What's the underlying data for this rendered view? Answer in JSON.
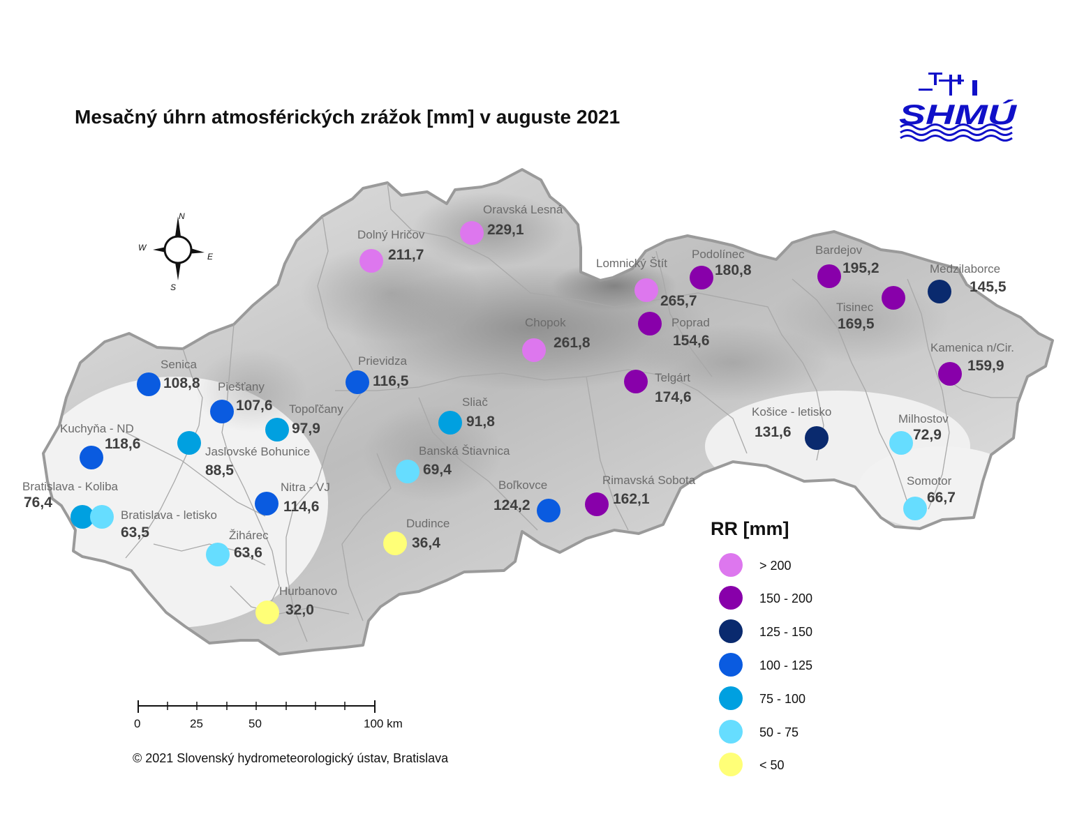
{
  "title": "Mesačný úhrn atmosférických zrážok [mm] v auguste 2021",
  "logo": {
    "text": "SHMÚ",
    "color": "#1010c8"
  },
  "copyright": "© 2021 Slovenský hydrometeorologický ústav, Bratislava",
  "compass": {
    "n": "N",
    "s": "S",
    "e": "E",
    "w": "W"
  },
  "scale": {
    "labels": [
      "0",
      "25",
      "50",
      "100 km"
    ]
  },
  "legend": {
    "title": "RR [mm]",
    "items": [
      {
        "label": "> 200",
        "color": "#dd77ee"
      },
      {
        "label": "150 - 200",
        "color": "#8800aa"
      },
      {
        "label": "125 - 150",
        "color": "#0a2a6e"
      },
      {
        "label": "100 - 125",
        "color": "#0a5be0"
      },
      {
        "label": "75 - 100",
        "color": "#00a0e0"
      },
      {
        "label": "50 - 75",
        "color": "#66ddff"
      },
      {
        "label": "< 50",
        "color": "#ffff77"
      }
    ]
  },
  "stations": [
    {
      "name": "Oravská Lesná",
      "value": "229,1",
      "class": 0
    },
    {
      "name": "Dolný Hričov",
      "value": "211,7",
      "class": 0
    },
    {
      "name": "Lomnický Štít",
      "value": "265,7",
      "class": 0
    },
    {
      "name": "Podolínec",
      "value": "180,8",
      "class": 1
    },
    {
      "name": "Bardejov",
      "value": "195,2",
      "class": 1
    },
    {
      "name": "Medzilaborce",
      "value": "145,5",
      "class": 2
    },
    {
      "name": "Tisinec",
      "value": "169,5",
      "class": 1
    },
    {
      "name": "Poprad",
      "value": "154,6",
      "class": 1
    },
    {
      "name": "Chopok",
      "value": "261,8",
      "class": 0
    },
    {
      "name": "Kamenica n/Cir.",
      "value": "159,9",
      "class": 1
    },
    {
      "name": "Telgárt",
      "value": "174,6",
      "class": 1
    },
    {
      "name": "Senica",
      "value": "108,8",
      "class": 3
    },
    {
      "name": "Prievidza",
      "value": "116,5",
      "class": 3
    },
    {
      "name": "Piešťany",
      "value": "107,6",
      "class": 3
    },
    {
      "name": "Topoľčany",
      "value": "97,9",
      "class": 4
    },
    {
      "name": "Sliač",
      "value": "91,8",
      "class": 4
    },
    {
      "name": "Kuchyňa - ND",
      "value": "118,6",
      "class": 3
    },
    {
      "name": "Jaslovské Bohunice",
      "value": "88,5",
      "class": 4
    },
    {
      "name": "Košice - letisko",
      "value": "131,6",
      "class": 2
    },
    {
      "name": "Milhostov",
      "value": "72,9",
      "class": 5
    },
    {
      "name": "Banská Štiavnica",
      "value": "69,4",
      "class": 5
    },
    {
      "name": "Bratislava - Koliba",
      "value": "76,4",
      "class": 4
    },
    {
      "name": "Nitra - VJ",
      "value": "114,6",
      "class": 3
    },
    {
      "name": "Boľkovce",
      "value": "124,2",
      "class": 3
    },
    {
      "name": "Rimavská Sobota",
      "value": "162,1",
      "class": 1
    },
    {
      "name": "Somotor",
      "value": "66,7",
      "class": 5
    },
    {
      "name": "Bratislava - letisko",
      "value": "63,5",
      "class": 5
    },
    {
      "name": "Žihárec",
      "value": "63,6",
      "class": 5
    },
    {
      "name": "Dudince",
      "value": "36,4",
      "class": 6
    },
    {
      "name": "Hurbanovo",
      "value": "32,0",
      "class": 6
    }
  ]
}
